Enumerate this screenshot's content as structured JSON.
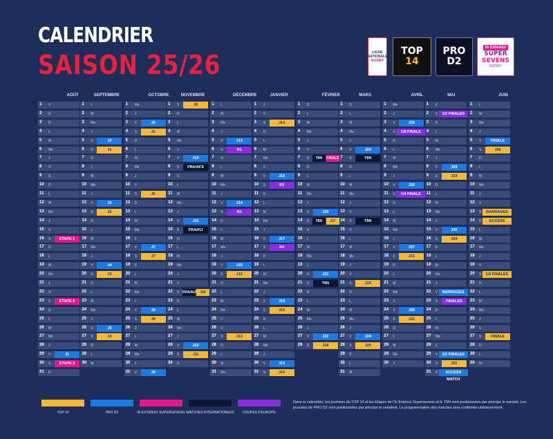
{
  "title": {
    "line1": "CALENDRIER",
    "line2": "SAISON 25/26"
  },
  "logos": {
    "lnr": [
      "LIGUE",
      "NATIONALE",
      "RUGBY"
    ],
    "top14": [
      "TOP",
      "14"
    ],
    "prod2": [
      "PRO",
      "D2"
    ],
    "super": [
      "In Extenso",
      "SUPER",
      "SEVENS",
      "RUGBY"
    ]
  },
  "colors": {
    "top14": "#f5b935",
    "prod2": "#1e7ae3",
    "super": "#e8168a",
    "intl": "#0b1730",
    "coupe": "#8a2be2"
  },
  "months": [
    {
      "name": "AOÛT",
      "days": 31,
      "first": 5
    },
    {
      "name": "SEPTEMBRE",
      "days": 30,
      "first": 1
    },
    {
      "name": "OCTOBRE",
      "days": 31,
      "first": 3
    },
    {
      "name": "NOVEMBRE",
      "days": 30,
      "first": 6
    },
    {
      "name": "DÉCEMBRE",
      "days": 31,
      "first": 1
    },
    {
      "name": "JANVIER",
      "days": 31,
      "first": 4
    },
    {
      "name": "FÉVRIER",
      "days": 28,
      "first": 0
    },
    {
      "name": "MARS",
      "days": 31,
      "first": 0
    },
    {
      "name": "AVRIL",
      "days": 30,
      "first": 3
    },
    {
      "name": "MAI",
      "days": 31,
      "first": 5
    },
    {
      "name": "JUIN",
      "days": 30,
      "first": 1
    }
  ],
  "weekdays": [
    "D",
    "L",
    "M",
    "Me",
    "J",
    "V",
    "S"
  ],
  "events": [
    {
      "m": 1,
      "d": 5,
      "label": "J2",
      "type": "prod2"
    },
    {
      "m": 1,
      "d": 6,
      "label": "J1",
      "type": "top14"
    },
    {
      "m": 1,
      "d": 12,
      "label": "J3",
      "type": "prod2"
    },
    {
      "m": 1,
      "d": 13,
      "label": "J2",
      "type": "top14"
    },
    {
      "m": 0,
      "d": 16,
      "label": "ETAPE 1",
      "type": "super"
    },
    {
      "m": 1,
      "d": 19,
      "label": "J4",
      "type": "prod2"
    },
    {
      "m": 1,
      "d": 20,
      "label": "J3",
      "type": "top14"
    },
    {
      "m": 0,
      "d": 23,
      "label": "ETAPE 2",
      "type": "super"
    },
    {
      "m": 1,
      "d": 26,
      "label": "J5",
      "type": "prod2"
    },
    {
      "m": 1,
      "d": 27,
      "label": "J4",
      "type": "top14"
    },
    {
      "m": 0,
      "d": 29,
      "label": "J1",
      "type": "prod2"
    },
    {
      "m": 0,
      "d": 30,
      "label": "ETAPE 3",
      "type": "super"
    },
    {
      "m": 3,
      "d": 1,
      "label": "J9",
      "type": "top14"
    },
    {
      "m": 2,
      "d": 3,
      "label": "J6",
      "type": "prod2"
    },
    {
      "m": 2,
      "d": 4,
      "label": "J5",
      "type": "top14"
    },
    {
      "m": 3,
      "d": 7,
      "label": "J10",
      "type": "prod2"
    },
    {
      "m": 3,
      "d": 8,
      "label": "FRA/AFS",
      "type": "intl"
    },
    {
      "m": 2,
      "d": 11,
      "label": "J6",
      "type": "top14"
    },
    {
      "m": 3,
      "d": 14,
      "label": "J11",
      "type": "prod2"
    },
    {
      "m": 3,
      "d": 15,
      "label": "FRA/FIJ",
      "type": "intl"
    },
    {
      "m": 2,
      "d": 17,
      "label": "J7",
      "type": "prod2"
    },
    {
      "m": 2,
      "d": 18,
      "label": "J7",
      "type": "top14"
    },
    {
      "m": 3,
      "d": 22,
      "label": "FRA/AUS",
      "type": "intl"
    },
    {
      "m": 3,
      "d": 22,
      "label": "J10",
      "type": "top14"
    },
    {
      "m": 2,
      "d": 24,
      "label": "J8",
      "type": "prod2"
    },
    {
      "m": 2,
      "d": 25,
      "label": "J8",
      "type": "top14"
    },
    {
      "m": 3,
      "d": 28,
      "label": "J12",
      "type": "prod2"
    },
    {
      "m": 3,
      "d": 29,
      "label": "J11",
      "type": "top14"
    },
    {
      "m": 2,
      "d": 31,
      "label": "J9",
      "type": "prod2"
    },
    {
      "m": 4,
      "d": 5,
      "label": "J13",
      "type": "prod2"
    },
    {
      "m": 4,
      "d": 6,
      "label": "R1",
      "type": "coupe"
    },
    {
      "m": 5,
      "d": 3,
      "label": "J14",
      "type": "top14"
    },
    {
      "m": 4,
      "d": 12,
      "label": "J14",
      "type": "prod2"
    },
    {
      "m": 4,
      "d": 13,
      "label": "R2",
      "type": "coupe"
    },
    {
      "m": 5,
      "d": 9,
      "label": "J16",
      "type": "prod2"
    },
    {
      "m": 5,
      "d": 10,
      "label": "R3",
      "type": "coupe"
    },
    {
      "m": 5,
      "d": 16,
      "label": "J17",
      "type": "prod2"
    },
    {
      "m": 5,
      "d": 17,
      "label": "R4",
      "type": "coupe"
    },
    {
      "m": 4,
      "d": 19,
      "label": "J15",
      "type": "prod2"
    },
    {
      "m": 4,
      "d": 20,
      "label": "J12",
      "type": "top14"
    },
    {
      "m": 5,
      "d": 23,
      "label": "J18",
      "type": "prod2"
    },
    {
      "m": 5,
      "d": 24,
      "label": "J15",
      "type": "top14"
    },
    {
      "m": 4,
      "d": 27,
      "label": "J13",
      "type": "top14"
    },
    {
      "m": 5,
      "d": 30,
      "label": "J19",
      "type": "prod2"
    },
    {
      "m": 5,
      "d": 31,
      "label": "J16",
      "type": "top14"
    },
    {
      "m": 6,
      "d": 7,
      "label": "T6N",
      "type": "intl"
    },
    {
      "m": 6,
      "d": 7,
      "label": "FINALE",
      "type": "super"
    },
    {
      "m": 7,
      "d": 6,
      "label": "J23",
      "type": "prod2"
    },
    {
      "m": 7,
      "d": 7,
      "label": "T6N",
      "type": "intl"
    },
    {
      "m": 6,
      "d": 13,
      "label": "J20",
      "type": "prod2"
    },
    {
      "m": 6,
      "d": 14,
      "label": "T6N",
      "type": "intl"
    },
    {
      "m": 6,
      "d": 14,
      "label": "J17",
      "type": "top14"
    },
    {
      "m": 7,
      "d": 14,
      "label": "T6N",
      "type": "intl"
    },
    {
      "m": 6,
      "d": 20,
      "label": "J21",
      "type": "prod2"
    },
    {
      "m": 6,
      "d": 21,
      "label": "T6N",
      "type": "intl"
    },
    {
      "m": 7,
      "d": 21,
      "label": "J19",
      "type": "top14"
    },
    {
      "m": 6,
      "d": 27,
      "label": "J22",
      "type": "prod2"
    },
    {
      "m": 7,
      "d": 27,
      "label": "J24",
      "type": "prod2"
    },
    {
      "m": 6,
      "d": 28,
      "label": "J18",
      "type": "top14"
    },
    {
      "m": 7,
      "d": 28,
      "label": "J20",
      "type": "top14"
    },
    {
      "m": 9,
      "d": 2,
      "label": "1/2 FINALES",
      "type": "coupe"
    },
    {
      "m": 8,
      "d": 3,
      "label": "J25",
      "type": "prod2"
    },
    {
      "m": 8,
      "d": 4,
      "label": "1/8 FINALE",
      "type": "coupe"
    },
    {
      "m": 9,
      "d": 8,
      "label": "J29",
      "type": "prod2"
    },
    {
      "m": 9,
      "d": 9,
      "label": "J23",
      "type": "top14"
    },
    {
      "m": 8,
      "d": 10,
      "label": "J26",
      "type": "prod2"
    },
    {
      "m": 8,
      "d": 11,
      "label": "1/4 FINALE",
      "type": "coupe"
    },
    {
      "m": 9,
      "d": 15,
      "label": "J30",
      "type": "prod2"
    },
    {
      "m": 9,
      "d": 16,
      "label": "J24",
      "type": "top14"
    },
    {
      "m": 8,
      "d": 17,
      "label": "J27",
      "type": "prod2"
    },
    {
      "m": 8,
      "d": 18,
      "label": "J21",
      "type": "top14"
    },
    {
      "m": 9,
      "d": 22,
      "label": "BARRAGES",
      "type": "prod2"
    },
    {
      "m": 9,
      "d": 23,
      "label": "FINALES",
      "type": "coupe"
    },
    {
      "m": 8,
      "d": 24,
      "label": "J28",
      "type": "prod2"
    },
    {
      "m": 8,
      "d": 25,
      "label": "J22",
      "type": "top14"
    },
    {
      "m": 9,
      "d": 29,
      "label": "1/2 FINALES",
      "type": "prod2"
    },
    {
      "m": 9,
      "d": 30,
      "label": "J25",
      "type": "top14"
    },
    {
      "m": 9,
      "d": 31,
      "label": "ACCESS MATCH",
      "type": "prod2"
    },
    {
      "m": 10,
      "d": 5,
      "label": "FINALE",
      "type": "prod2"
    },
    {
      "m": 10,
      "d": 6,
      "label": "J26",
      "type": "top14"
    },
    {
      "m": 10,
      "d": 13,
      "label": "BARRAGES",
      "type": "top14"
    },
    {
      "m": 10,
      "d": 14,
      "label": "ACCESS MATCH",
      "type": "top14"
    },
    {
      "m": 10,
      "d": 20,
      "label": "1/2 FINALES",
      "type": "top14"
    },
    {
      "m": 10,
      "d": 27,
      "label": "FINALE",
      "type": "top14"
    }
  ],
  "legend": [
    {
      "type": "top14",
      "label": "TOP 14"
    },
    {
      "type": "prod2",
      "label": "PRO D2"
    },
    {
      "type": "super",
      "label": "IN EXTENSO SUPERSEVENS"
    },
    {
      "type": "intl",
      "label": "MATCHES INTERNATIONAUX"
    },
    {
      "type": "coupe",
      "label": "COUPES D'EUROPE"
    }
  ],
  "footnote": "Dans le calendrier, les journées du TOP 14 et les Etapes de l'In Extenso Supersevens et le T6N sont positionnées par principe le samedi. Les journées de PRO D2 sont positionnées par principe le vendredi. La programmation des matches sera confirmée ultérieurement."
}
